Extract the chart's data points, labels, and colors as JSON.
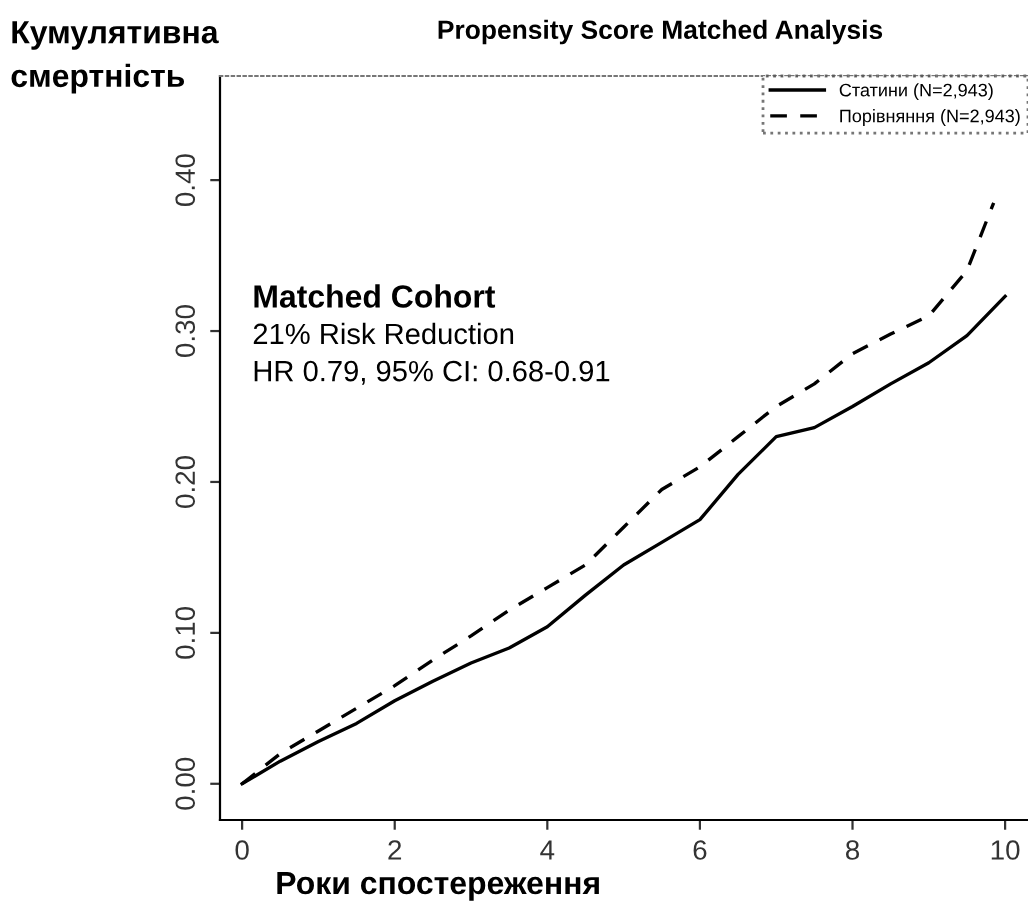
{
  "chart_data": {
    "type": "line",
    "title": "Propensity Score Matched Analysis",
    "xlabel": "Роки спостереження",
    "ylabel": "Кумулятивна\nсмертність",
    "annotations": [
      "Matched Cohort",
      "21% Risk Reduction",
      "HR 0.79, 95% CI: 0.68-0.91"
    ],
    "series": [
      {
        "name": "Статини (N=2,943)",
        "color": "#000000",
        "line_style": "solid",
        "x": [
          0,
          0.5,
          1,
          1.5,
          2,
          2.5,
          3,
          3.5,
          4,
          4.5,
          5,
          5.5,
          6,
          6.5,
          7,
          7.5,
          8,
          8.5,
          9,
          9.5,
          10
        ],
        "values": [
          0,
          0.015,
          0.028,
          0.04,
          0.055,
          0.068,
          0.08,
          0.09,
          0.104,
          0.125,
          0.145,
          0.16,
          0.175,
          0.205,
          0.23,
          0.236,
          0.25,
          0.265,
          0.279,
          0.297,
          0.323
        ]
      },
      {
        "name": "Порівняння (N=2,943)",
        "color": "#000000",
        "line_style": "dashed",
        "x": [
          0,
          0.5,
          1,
          1.5,
          2,
          2.5,
          3,
          3.5,
          4,
          4.5,
          5,
          5.5,
          6,
          6.5,
          7,
          7.5,
          8,
          8.5,
          9,
          9.5,
          9.85
        ],
        "values": [
          0,
          0.02,
          0.035,
          0.05,
          0.065,
          0.082,
          0.098,
          0.115,
          0.13,
          0.145,
          0.17,
          0.195,
          0.21,
          0.23,
          0.25,
          0.265,
          0.285,
          0.298,
          0.31,
          0.34,
          0.385
        ]
      }
    ],
    "xlim": [
      -0.29,
      10.3
    ],
    "xticks": [
      0,
      2,
      4,
      6,
      8,
      10
    ],
    "ylim": [
      -0.024,
      0.469
    ],
    "yticks": [
      {
        "value": 0,
        "label": "0.00"
      },
      {
        "value": 0.1,
        "label": "0.10"
      },
      {
        "value": 0.2,
        "label": "0.20"
      },
      {
        "value": 0.3,
        "label": "0.30"
      },
      {
        "value": 0.4,
        "label": "0.40"
      }
    ],
    "grid": false,
    "legend": "top right",
    "marker": "none"
  }
}
